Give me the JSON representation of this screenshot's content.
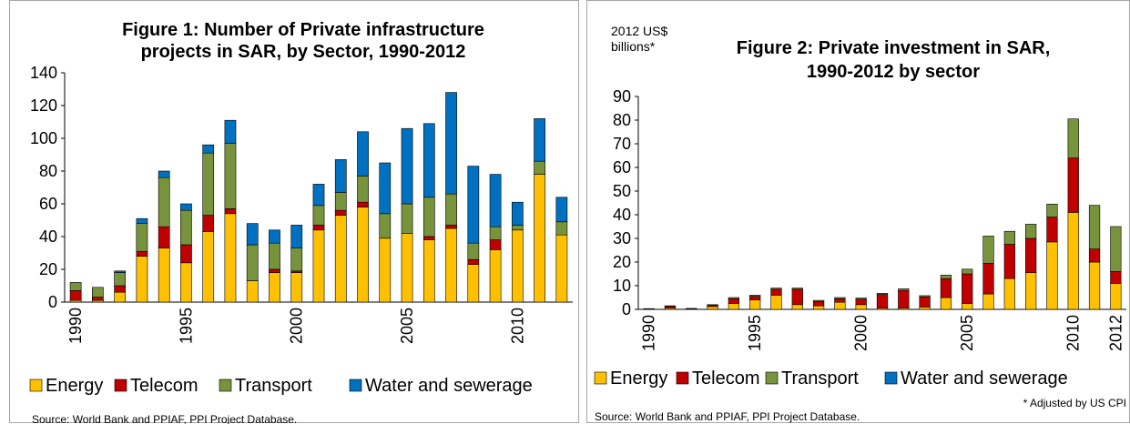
{
  "chart_data": [
    {
      "type": "bar",
      "stacked": true,
      "title": [
        "Figure 1: Number of Private infrastructure",
        "projects in SAR, by Sector, 1990-2012"
      ],
      "xlabel": "",
      "ylabel": "",
      "ylim": [
        0,
        140
      ],
      "y_ticks": [
        "0",
        "20",
        "40",
        "60",
        "80",
        "100",
        "120",
        "140"
      ],
      "x_tick_labels": [
        "1990",
        "1995",
        "2000",
        "2005",
        "2010"
      ],
      "categories": [
        "1990",
        "1991",
        "1992",
        "1993",
        "1994",
        "1995",
        "1996",
        "1997",
        "1998",
        "1999",
        "2000",
        "2001",
        "2002",
        "2003",
        "2004",
        "2005",
        "2006",
        "2007",
        "2008",
        "2009",
        "2010",
        "2011",
        "2012"
      ],
      "series": [
        {
          "name": "Energy",
          "color": "#ffc000",
          "values": [
            1,
            1,
            6,
            28,
            33,
            24,
            43,
            54,
            13,
            18,
            18,
            44,
            53,
            58,
            39,
            42,
            38,
            45,
            23,
            32,
            44,
            78,
            41
          ]
        },
        {
          "name": "Telecom",
          "color": "#c00000",
          "values": [
            6,
            2,
            4,
            3,
            13,
            11,
            10,
            3,
            0,
            2,
            1,
            3,
            3,
            3,
            0,
            0,
            2,
            2,
            3,
            6,
            0,
            0,
            0
          ]
        },
        {
          "name": "Transport",
          "color": "#77933c",
          "values": [
            5,
            6,
            8,
            17,
            30,
            21,
            38,
            40,
            22,
            16,
            14,
            12,
            11,
            16,
            15,
            18,
            24,
            19,
            10,
            8,
            3,
            8,
            8
          ]
        },
        {
          "name": "Water and sewerage",
          "color": "#0070c0",
          "values": [
            0,
            0,
            1,
            3,
            4,
            4,
            5,
            14,
            13,
            8,
            14,
            13,
            20,
            27,
            31,
            46,
            45,
            62,
            47,
            32,
            14,
            26,
            15
          ]
        }
      ],
      "legend": [
        "Energy",
        "Telecom",
        "Transport",
        "Water and sewerage"
      ],
      "legend_position": "bottom",
      "source": "Source:  World Bank and PPIAF, PPI Project Database."
    },
    {
      "type": "bar",
      "stacked": true,
      "title": [
        "Figure 2: Private investment in SAR,",
        "1990-2012 by sector"
      ],
      "unit_label": [
        "2012 US$",
        "billions*"
      ],
      "xlabel": "",
      "ylabel": "",
      "ylim": [
        0,
        90
      ],
      "y_ticks": [
        "0",
        "10",
        "20",
        "30",
        "40",
        "50",
        "60",
        "70",
        "80",
        "90"
      ],
      "x_tick_labels": [
        "1990",
        "1995",
        "2000",
        "2005",
        "2010",
        "2012"
      ],
      "categories": [
        "1990",
        "1991",
        "1992",
        "1993",
        "1994",
        "1995",
        "1996",
        "1997",
        "1998",
        "1999",
        "2000",
        "2001",
        "2002",
        "2003",
        "2004",
        "2005",
        "2006",
        "2007",
        "2008",
        "2009",
        "2010",
        "2011",
        "2012"
      ],
      "series": [
        {
          "name": "Energy",
          "color": "#ffc000",
          "values": [
            0.2,
            0.5,
            0.2,
            1.2,
            2.5,
            4.0,
            6.0,
            2.0,
            1.5,
            3.0,
            2.0,
            0.5,
            0.5,
            1.0,
            5.0,
            2.5,
            6.5,
            13.0,
            15.5,
            28.5,
            41.0,
            20.0,
            11.0
          ]
        },
        {
          "name": "Telecom",
          "color": "#c00000",
          "values": [
            0.1,
            0.8,
            0.1,
            0.5,
            2.0,
            1.5,
            2.5,
            6.5,
            1.8,
            1.5,
            2.3,
            5.8,
            7.5,
            4.3,
            8.0,
            12.5,
            13.0,
            14.5,
            14.5,
            10.5,
            23.0,
            5.5,
            5.0
          ]
        },
        {
          "name": "Transport",
          "color": "#77933c",
          "values": [
            0.0,
            0.2,
            0.1,
            0.3,
            0.5,
            0.5,
            0.5,
            0.5,
            0.5,
            0.5,
            0.5,
            0.5,
            0.7,
            0.5,
            1.5,
            2.0,
            11.5,
            5.5,
            6.0,
            5.5,
            16.5,
            18.5,
            19.0
          ]
        },
        {
          "name": "Water and sewerage",
          "color": "#0070c0",
          "values": [
            0.0,
            0.0,
            0.0,
            0.0,
            0.0,
            0.0,
            0.0,
            0.0,
            0.0,
            0.0,
            0.0,
            0.0,
            0.0,
            0.0,
            0.0,
            0.0,
            0.0,
            0.0,
            0.0,
            0.0,
            0.0,
            0.0,
            0.0
          ]
        }
      ],
      "legend": [
        "Energy",
        "Telecom",
        "Transport",
        "Water and sewerage"
      ],
      "legend_position": "bottom",
      "note": "* Adjusted by US CPI",
      "source": "Source:  World Bank and PPIAF, PPI Project Database."
    }
  ]
}
